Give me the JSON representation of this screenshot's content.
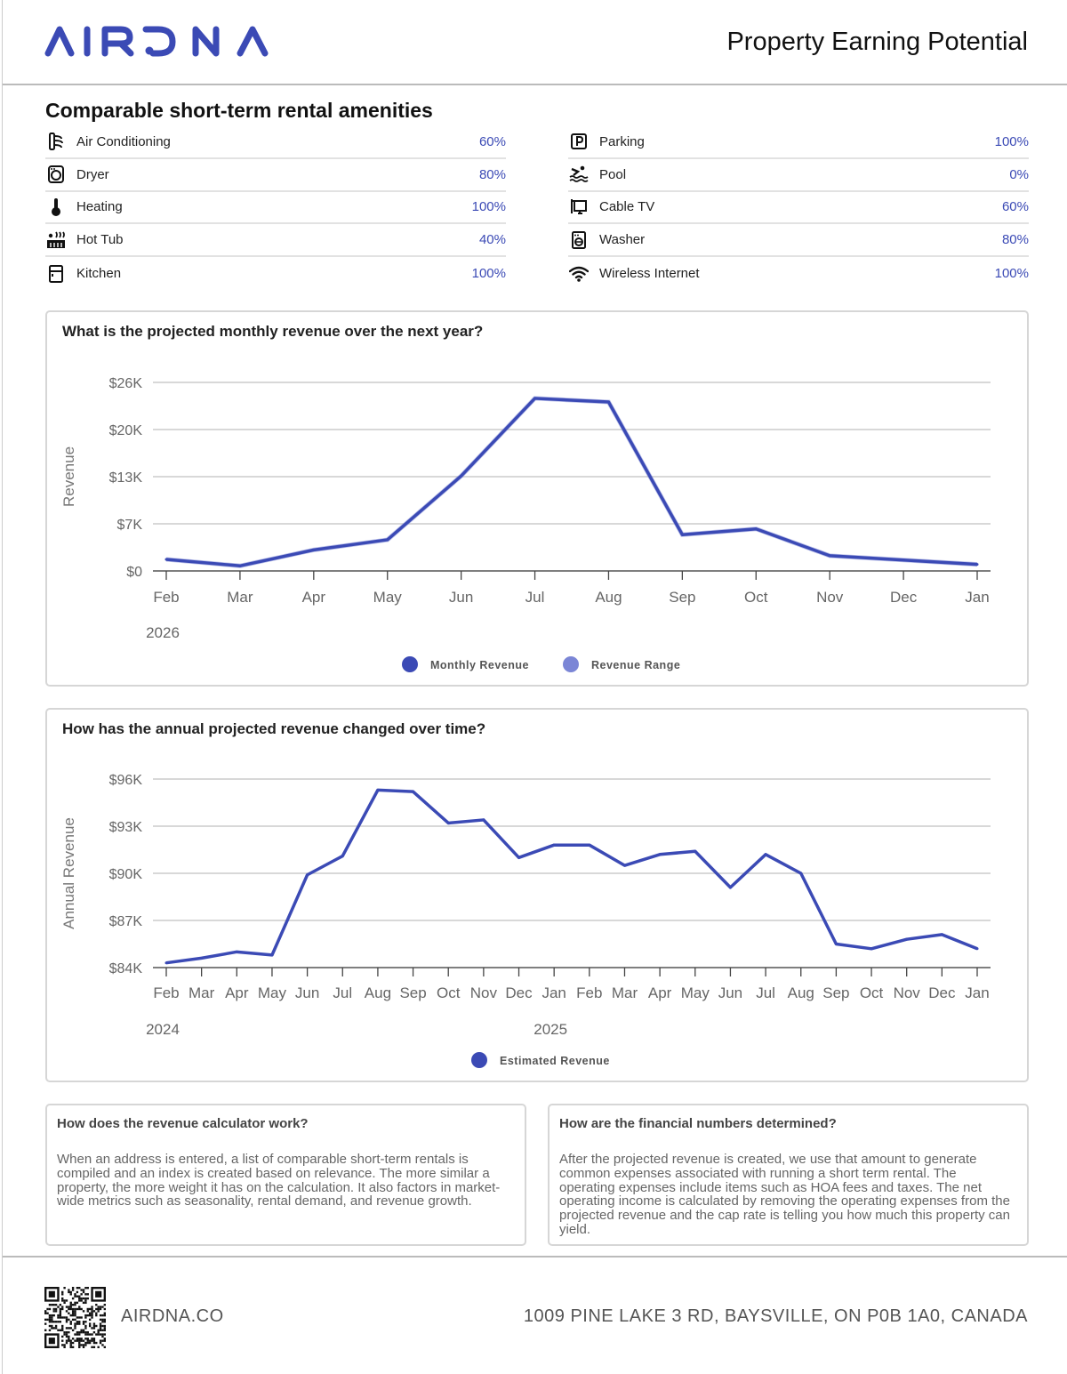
{
  "header": {
    "logo": "AIRDNA",
    "title": "Property Earning Potential"
  },
  "amenities": {
    "title": "Comparable short-term rental amenities",
    "left": [
      {
        "icon": "air-conditioning-icon",
        "label": "Air Conditioning",
        "value": "60%"
      },
      {
        "icon": "dryer-icon",
        "label": "Dryer",
        "value": "80%"
      },
      {
        "icon": "thermometer-icon",
        "label": "Heating",
        "value": "100%"
      },
      {
        "icon": "hot-tub-icon",
        "label": "Hot Tub",
        "value": "40%"
      },
      {
        "icon": "kitchen-icon",
        "label": "Kitchen",
        "value": "100%"
      }
    ],
    "right": [
      {
        "icon": "parking-icon",
        "label": "Parking",
        "value": "100%"
      },
      {
        "icon": "pool-icon",
        "label": "Pool",
        "value": "0%"
      },
      {
        "icon": "cable-tv-icon",
        "label": "Cable TV",
        "value": "60%"
      },
      {
        "icon": "washer-icon",
        "label": "Washer",
        "value": "80%"
      },
      {
        "icon": "wifi-icon",
        "label": "Wireless Internet",
        "value": "100%"
      }
    ]
  },
  "colors": {
    "accent": "#3b4ab5",
    "range": "#7b86d6"
  },
  "chart_data": [
    {
      "type": "line",
      "title": "What is the projected monthly revenue over the next year?",
      "ylabel": "Revenue",
      "xlabel": "",
      "categories": [
        "Feb",
        "Mar",
        "Apr",
        "May",
        "Jun",
        "Jul",
        "Aug",
        "Sep",
        "Oct",
        "Nov",
        "Dec",
        "Jan"
      ],
      "year_labels": [
        {
          "index": 0,
          "label": "2026"
        }
      ],
      "yticks": [
        "$0",
        "$7K",
        "$13K",
        "$20K",
        "$26K"
      ],
      "ylim": [
        0,
        26000
      ],
      "grid": true,
      "series": [
        {
          "name": "Monthly Revenue",
          "values": [
            1600,
            700,
            2900,
            4300,
            13100,
            23800,
            23300,
            5000,
            5800,
            2100,
            1500,
            900
          ]
        }
      ],
      "legend": [
        "Monthly Revenue",
        "Revenue Range"
      ],
      "legend_position": "bottom"
    },
    {
      "type": "line",
      "title": "How has the annual projected revenue changed over time?",
      "ylabel": "Annual Revenue",
      "xlabel": "",
      "categories": [
        "Feb",
        "Mar",
        "Apr",
        "May",
        "Jun",
        "Jul",
        "Aug",
        "Sep",
        "Oct",
        "Nov",
        "Dec",
        "Jan",
        "Feb",
        "Mar",
        "Apr",
        "May",
        "Jun",
        "Jul",
        "Aug",
        "Sep",
        "Oct",
        "Nov",
        "Dec",
        "Jan"
      ],
      "year_labels": [
        {
          "index": 0,
          "label": "2024"
        },
        {
          "index": 11,
          "label": "2025"
        }
      ],
      "yticks": [
        "$84K",
        "$87K",
        "$90K",
        "$93K",
        "$96K"
      ],
      "ylim": [
        84000,
        96000
      ],
      "grid": true,
      "series": [
        {
          "name": "Estimated Revenue",
          "values": [
            84300,
            84600,
            85000,
            84800,
            89900,
            91100,
            95300,
            95200,
            93200,
            93400,
            91000,
            91800,
            91800,
            90500,
            91200,
            91400,
            89100,
            91200,
            90000,
            85500,
            85200,
            85800,
            86100,
            85200
          ]
        }
      ],
      "legend": [
        "Estimated Revenue"
      ],
      "legend_position": "bottom"
    }
  ],
  "info": [
    {
      "title": "How does the revenue calculator work?",
      "body": "When an address is entered, a list of comparable short-term rentals is compiled and an index is created based on relevance. The more similar a property, the more weight it has on the calculation. It also factors in market-wide metrics such as seasonality, rental demand, and revenue growth."
    },
    {
      "title": "How are the financial numbers determined?",
      "body": "After the projected revenue is created, we use that amount to generate common expenses associated with running a short term rental. The operating expenses include items such as HOA fees and taxes. The net operating income is calculated by removing the operating expenses from the projected revenue and the cap rate is telling you how much this property can yield."
    }
  ],
  "footer": {
    "url": "AIRDNA.CO",
    "address": "1009 PINE LAKE 3 RD, BAYSVILLE, ON P0B 1A0, CANADA"
  }
}
